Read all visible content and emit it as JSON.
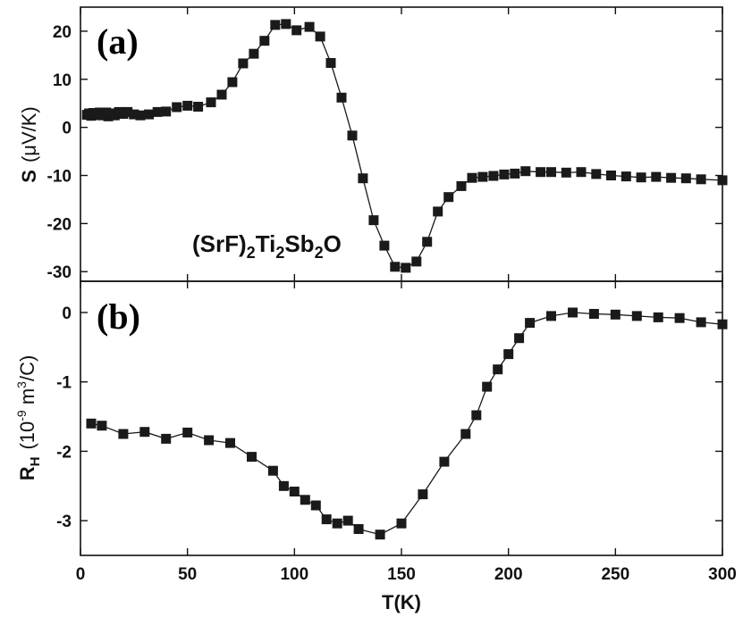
{
  "figure": {
    "x_axis_label": "T(K)",
    "compound": {
      "part1": "(SrF)",
      "sub1": "2",
      "part2": "Ti",
      "sub2": "2",
      "part3": "Sb",
      "sub3": "2",
      "part4": "O"
    }
  },
  "chart_data": [
    {
      "type": "line",
      "panel_label": "(a)",
      "title": "",
      "xlabel": "T(K)",
      "ylabel": {
        "main": "S",
        "unit": "(μV/K)"
      },
      "xlim": [
        0,
        300
      ],
      "ylim": [
        -32,
        25
      ],
      "x_ticks": [
        0,
        50,
        100,
        150,
        200,
        250,
        300
      ],
      "y_ticks": [
        -30,
        -20,
        -10,
        0,
        10,
        20
      ],
      "marker": "square",
      "color": "#1a1a1a",
      "series": [
        {
          "name": "S",
          "x": [
            3,
            4,
            5,
            6,
            7,
            8,
            9,
            10,
            11,
            12,
            13,
            14,
            15,
            16,
            18,
            20,
            22,
            25,
            28,
            32,
            36,
            40,
            45,
            50,
            55,
            61,
            66,
            71,
            76,
            81,
            86,
            91,
            96,
            101,
            107,
            112,
            117,
            122,
            127,
            132,
            137,
            142,
            147,
            152,
            157,
            162,
            167,
            172,
            178,
            183,
            188,
            193,
            198,
            203,
            208,
            215,
            220,
            227,
            234,
            241,
            248,
            255,
            262,
            269,
            276,
            283,
            290,
            300
          ],
          "values": [
            2.6,
            2.9,
            2.4,
            3.0,
            2.6,
            2.8,
            3.1,
            2.5,
            2.7,
            3.1,
            2.3,
            2.9,
            2.9,
            2.5,
            3.2,
            2.8,
            3.2,
            2.7,
            2.5,
            2.7,
            3.2,
            3.3,
            4.2,
            4.5,
            4.3,
            5.2,
            6.8,
            9.4,
            13.3,
            15.3,
            18.0,
            21.3,
            21.5,
            20.2,
            20.9,
            18.9,
            13.4,
            6.2,
            -1.7,
            -10.6,
            -19.3,
            -24.6,
            -29.0,
            -29.2,
            -27.9,
            -23.8,
            -17.5,
            -14.5,
            -12.2,
            -10.5,
            -10.3,
            -10.1,
            -9.8,
            -9.6,
            -9.1,
            -9.3,
            -9.3,
            -9.4,
            -9.3,
            -9.7,
            -10.0,
            -10.2,
            -10.4,
            -10.3,
            -10.5,
            -10.6,
            -10.8,
            -11.0
          ]
        }
      ]
    },
    {
      "type": "line",
      "panel_label": "(b)",
      "title": "",
      "xlabel": "T(K)",
      "ylabel": {
        "main": "R",
        "sub": "H",
        "unit_pre": "(10",
        "unit_exp1": "-9",
        "unit_mid": " m",
        "unit_exp2": "3",
        "unit_post": "/C)"
      },
      "xlim": [
        0,
        300
      ],
      "ylim": [
        -3.5,
        0.45
      ],
      "x_ticks": [
        0,
        50,
        100,
        150,
        200,
        250,
        300
      ],
      "y_ticks": [
        -3,
        -2,
        -1,
        0
      ],
      "marker": "square",
      "color": "#1a1a1a",
      "series": [
        {
          "name": "R_H",
          "x": [
            5,
            10,
            20,
            30,
            40,
            50,
            60,
            70,
            80,
            90,
            95,
            100,
            105,
            110,
            115,
            120,
            125,
            130,
            140,
            150,
            160,
            170,
            180,
            185,
            190,
            195,
            200,
            205,
            210,
            220,
            230,
            240,
            250,
            260,
            270,
            280,
            290,
            300
          ],
          "values": [
            -1.6,
            -1.63,
            -1.75,
            -1.72,
            -1.82,
            -1.73,
            -1.84,
            -1.88,
            -2.08,
            -2.28,
            -2.5,
            -2.58,
            -2.7,
            -2.78,
            -2.98,
            -3.04,
            -3.0,
            -3.12,
            -3.2,
            -3.04,
            -2.62,
            -2.15,
            -1.75,
            -1.48,
            -1.07,
            -0.82,
            -0.6,
            -0.37,
            -0.15,
            -0.05,
            0.0,
            -0.02,
            -0.03,
            -0.05,
            -0.07,
            -0.08,
            -0.14,
            -0.17
          ]
        }
      ]
    }
  ]
}
